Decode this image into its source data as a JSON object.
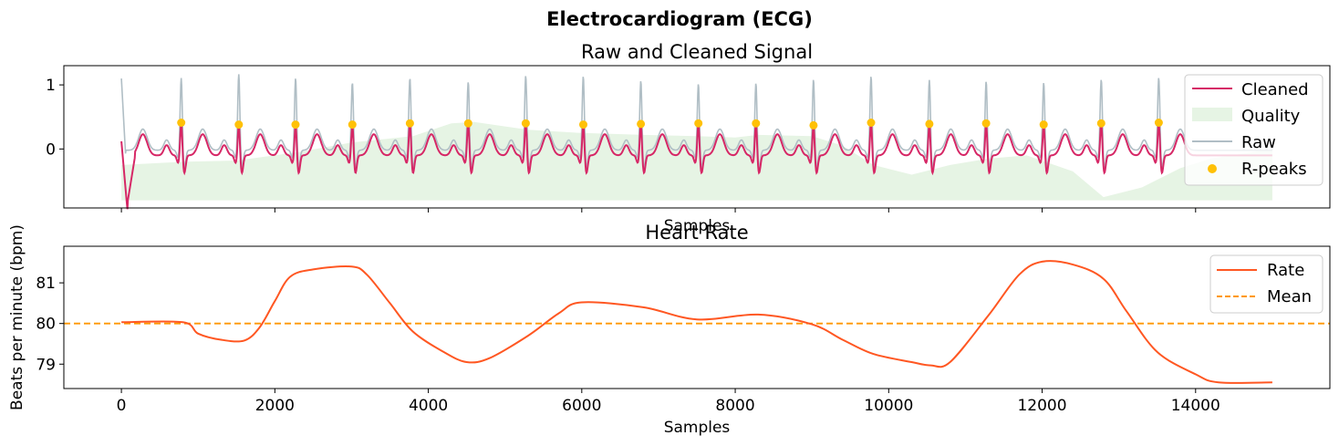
{
  "figure": {
    "title": "Electrocardiogram (ECG)"
  },
  "colors": {
    "cleaned": "#d62766",
    "raw": "#b0bec5",
    "quality": "#e6f4e4",
    "rpeaks": "#ffc107",
    "rate": "#ff5722",
    "mean": "#ff9800",
    "axis": "#000000"
  },
  "chart_data": [
    {
      "type": "line",
      "title": "Raw and Cleaned Signal",
      "xlabel": "Samples",
      "ylabel": "",
      "xlim": [
        -750,
        15750
      ],
      "ylim": [
        -0.92,
        1.3
      ],
      "yticks": [
        0,
        1
      ],
      "ytick_labels": [
        "0",
        "1"
      ],
      "xticks": [
        0,
        2000,
        4000,
        6000,
        8000,
        10000,
        12000,
        14000
      ],
      "xtick_labels_visible": false,
      "legend": {
        "position": "top-right",
        "entries": [
          "Cleaned",
          "Quality",
          "Raw",
          "R-peaks"
        ]
      },
      "r_peaks": {
        "x": [
          780,
          1530,
          2270,
          3010,
          3760,
          4520,
          5270,
          6020,
          6770,
          7520,
          8270,
          9020,
          9770,
          10530,
          11270,
          12020,
          12770,
          13520
        ],
        "y": [
          0.41,
          0.38,
          0.38,
          0.38,
          0.4,
          0.4,
          0.4,
          0.38,
          0.39,
          0.4,
          0.4,
          0.37,
          0.41,
          0.39,
          0.4,
          0.38,
          0.4,
          0.41
        ]
      },
      "raw_peak_heights": [
        1.14,
        1.2,
        1.14,
        1.07,
        1.14,
        1.08,
        1.18,
        1.17,
        1.1,
        1.05,
        1.06,
        1.12,
        1.17,
        1.11,
        1.09,
        1.07,
        1.12,
        1.15
      ],
      "quality": {
        "x": [
          0,
          800,
          1500,
          2300,
          3000,
          3800,
          4300,
          4600,
          5300,
          6000,
          6800,
          7500,
          8000,
          8300,
          9000,
          9400,
          9800,
          10300,
          10800,
          11300,
          11800,
          12400,
          12800,
          13300,
          13800,
          14200,
          15000
        ],
        "y": [
          -0.25,
          -0.2,
          -0.18,
          -0.05,
          0.1,
          0.2,
          0.4,
          0.42,
          0.3,
          0.25,
          0.22,
          0.2,
          0.18,
          0.22,
          0.2,
          0.05,
          -0.25,
          -0.4,
          -0.25,
          -0.15,
          -0.1,
          -0.35,
          -0.75,
          -0.6,
          -0.3,
          -0.15,
          0.0
        ]
      },
      "baseline": -0.8
    },
    {
      "type": "line",
      "title": "Heart Rate",
      "xlabel": "Samples",
      "ylabel": "Beats per minute (bpm)",
      "xlim": [
        -750,
        15750
      ],
      "ylim": [
        78.4,
        81.9
      ],
      "yticks": [
        79,
        80,
        81
      ],
      "ytick_labels": [
        "79",
        "80",
        "81"
      ],
      "xticks": [
        0,
        2000,
        4000,
        6000,
        8000,
        10000,
        12000,
        14000
      ],
      "xtick_labels": [
        "0",
        "2000",
        "4000",
        "6000",
        "8000",
        "10000",
        "12000",
        "14000"
      ],
      "legend": {
        "position": "top-right",
        "entries": [
          "Rate",
          "Mean"
        ]
      },
      "mean": 80.0,
      "series": [
        {
          "name": "Rate",
          "x": [
            0,
            800,
            1000,
            1300,
            1600,
            1800,
            2000,
            2200,
            2500,
            3000,
            3200,
            3500,
            3800,
            4200,
            4500,
            4800,
            5300,
            5700,
            6000,
            6800,
            7500,
            8300,
            9000,
            9400,
            9800,
            10300,
            10550,
            10800,
            11300,
            11700,
            12000,
            12400,
            12800,
            13100,
            13500,
            14000,
            14300,
            15000
          ],
          "y": [
            80.03,
            80.03,
            79.75,
            79.6,
            79.58,
            79.9,
            80.55,
            81.15,
            81.33,
            81.4,
            81.2,
            80.5,
            79.8,
            79.3,
            79.05,
            79.15,
            79.7,
            80.25,
            80.52,
            80.4,
            80.1,
            80.22,
            79.98,
            79.6,
            79.25,
            79.05,
            78.97,
            79.05,
            80.2,
            81.2,
            81.52,
            81.45,
            81.1,
            80.3,
            79.3,
            78.75,
            78.55,
            78.55
          ]
        }
      ]
    }
  ]
}
